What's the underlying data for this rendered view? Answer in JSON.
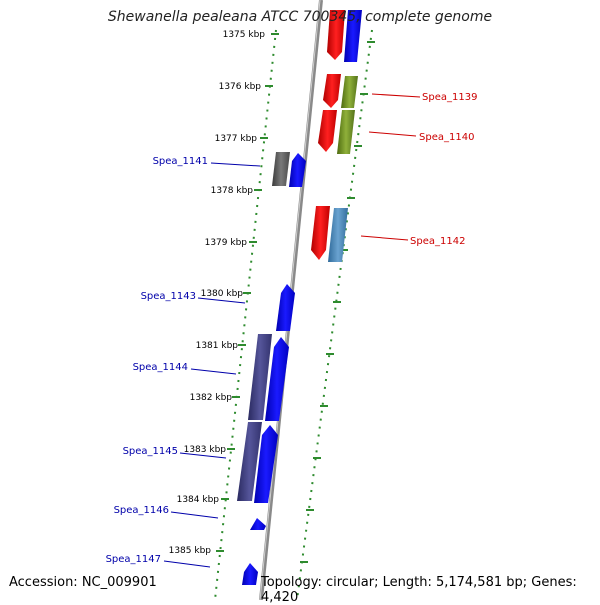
{
  "title": "Shewanella pealeana ATCC 700345, complete genome",
  "footer": {
    "accession": "Accession: NC_009901",
    "topology": "Topology: circular; Length: 5,174,581 bp; Genes: 4,420"
  },
  "kbp_labels": [
    "1375 kbp",
    "1376 kbp",
    "1377 kbp",
    "1378 kbp",
    "1379 kbp",
    "1380 kbp",
    "1381 kbp",
    "1382 kbp",
    "1383 kbp",
    "1384 kbp",
    "1385 kbp"
  ],
  "gene_labels": {
    "left": [
      "Spea_1141",
      "Spea_1143",
      "Spea_1144",
      "Spea_1145",
      "Spea_1146",
      "Spea_1147"
    ],
    "right": [
      "Spea_1139",
      "Spea_1140",
      "Spea_1142"
    ]
  },
  "colors": {
    "forward_gene": "#0000ff",
    "reverse_gene": "#ff0000",
    "dark_gene": "#4a4a8a",
    "gray_gene": "#666666",
    "olive_gene": "#6b8e23",
    "steel_gene": "#4682b4",
    "tick": "#2e8b2e",
    "label_left": "#0000aa",
    "label_right": "#cc0000"
  }
}
